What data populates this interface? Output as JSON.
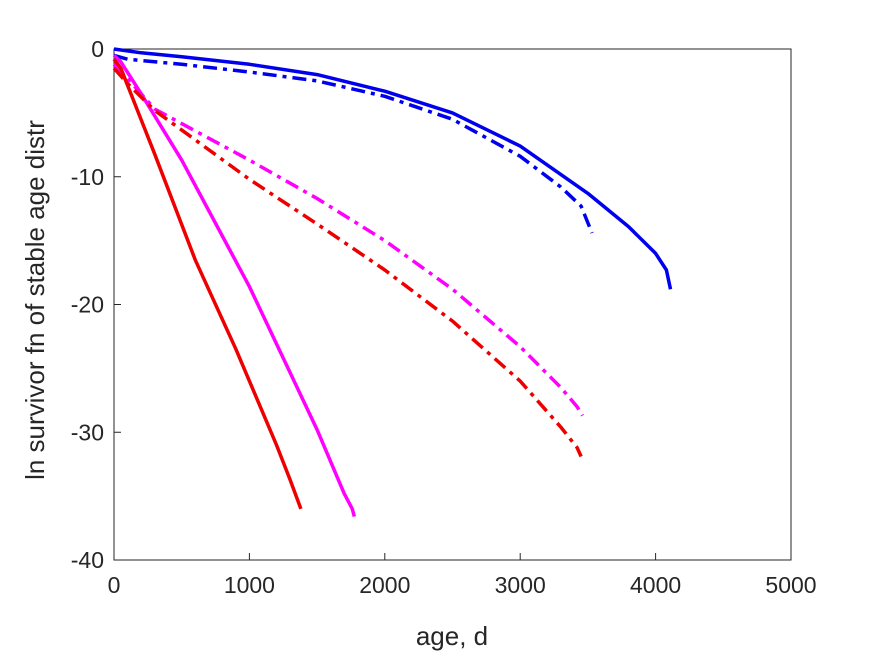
{
  "chart_data": {
    "type": "line",
    "title": "",
    "xlabel": "age, d",
    "ylabel": "ln survivor fn of stable age distr",
    "xlim": [
      0,
      5000
    ],
    "ylim": [
      -40,
      0
    ],
    "xticks": [
      0,
      1000,
      2000,
      3000,
      4000,
      5000
    ],
    "yticks": [
      0,
      -10,
      -20,
      -30,
      -40
    ],
    "grid": false,
    "legend": "none",
    "series": [
      {
        "color": "#0000ee",
        "style": "solid",
        "x": [
          0,
          200,
          500,
          1000,
          1500,
          2000,
          2500,
          3000,
          3500,
          3800,
          4000,
          4080,
          4110
        ],
        "y": [
          0,
          -0.3,
          -0.6,
          -1.2,
          -2.0,
          -3.3,
          -5.0,
          -7.6,
          -11.3,
          -13.9,
          -16.0,
          -17.3,
          -18.8
        ]
      },
      {
        "color": "#0000ee",
        "style": "dashdot",
        "x": [
          0,
          100,
          500,
          1000,
          1500,
          2000,
          2500,
          3000,
          3300,
          3450,
          3530
        ],
        "y": [
          -0.5,
          -0.8,
          -1.2,
          -1.8,
          -2.5,
          -3.7,
          -5.5,
          -8.4,
          -10.8,
          -12.3,
          -14.4
        ]
      },
      {
        "color": "#ff00ff",
        "style": "solid",
        "x": [
          0,
          50,
          200,
          500,
          1000,
          1500,
          1700,
          1760,
          1775
        ],
        "y": [
          -0.5,
          -1.0,
          -3.5,
          -8.7,
          -18.6,
          -29.8,
          -34.8,
          -36.0,
          -36.6
        ]
      },
      {
        "color": "#ff00ff",
        "style": "dashdot",
        "x": [
          0,
          100,
          300,
          1000,
          1500,
          2000,
          2500,
          3000,
          3300,
          3420,
          3460
        ],
        "y": [
          -1.2,
          -2.3,
          -4.7,
          -8.7,
          -11.7,
          -15.0,
          -18.8,
          -23.3,
          -26.5,
          -28.0,
          -28.7
        ]
      },
      {
        "color": "#ee0000",
        "style": "solid",
        "x": [
          0,
          50,
          300,
          600,
          900,
          1200,
          1300,
          1380
        ],
        "y": [
          -0.8,
          -1.5,
          -8.2,
          -16.5,
          -23.5,
          -31.0,
          -33.7,
          -36.0
        ]
      },
      {
        "color": "#ee0000",
        "style": "dashdot",
        "x": [
          0,
          100,
          300,
          1000,
          1500,
          2000,
          2500,
          3000,
          3300,
          3420,
          3450
        ],
        "y": [
          -1.5,
          -2.7,
          -4.8,
          -10.2,
          -13.7,
          -17.3,
          -21.3,
          -26.0,
          -29.6,
          -31.2,
          -31.9
        ]
      }
    ]
  }
}
